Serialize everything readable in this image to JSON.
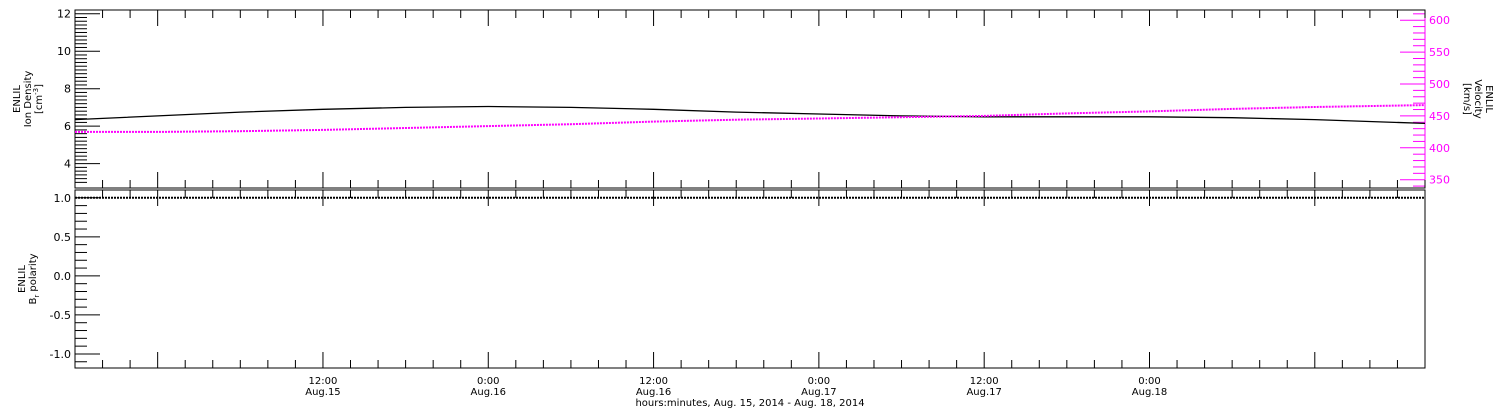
{
  "chart_data": [
    {
      "type": "line",
      "panel": "top",
      "x_range": [
        "2014-08-14T18:00",
        "2014-08-18T20:00"
      ],
      "ylabel_left": [
        "ENLIL",
        "Ion Density",
        "[cm",
        "-3",
        "]"
      ],
      "ylabel_right": [
        "ENLIL",
        "Velocity",
        "[km/s]"
      ],
      "ylim_left": [
        2.7,
        12.2
      ],
      "ylim_right": [
        337,
        616
      ],
      "yticks_left": [
        4,
        6,
        8,
        10,
        12
      ],
      "yticks_right": [
        350,
        400,
        450,
        500,
        550,
        600
      ],
      "series": [
        {
          "axis": "left",
          "color": "#000000",
          "x": [
            "2014-08-14T18:00",
            "2014-08-15T00:00",
            "2014-08-15T06:00",
            "2014-08-15T12:00",
            "2014-08-15T18:00",
            "2014-08-16T00:00",
            "2014-08-16T06:00",
            "2014-08-16T12:00",
            "2014-08-16T18:00",
            "2014-08-17T00:00",
            "2014-08-17T06:00",
            "2014-08-17T12:00",
            "2014-08-17T18:00",
            "2014-08-18T00:00",
            "2014-08-18T06:00",
            "2014-08-18T12:00",
            "2014-08-18T20:00"
          ],
          "values": [
            6.35,
            6.55,
            6.75,
            6.9,
            7.0,
            7.05,
            7.0,
            6.9,
            6.75,
            6.65,
            6.55,
            6.5,
            6.5,
            6.5,
            6.45,
            6.35,
            6.15
          ]
        },
        {
          "axis": "right",
          "color": "#ff00ff",
          "x": [
            "2014-08-14T18:00",
            "2014-08-15T00:00",
            "2014-08-15T06:00",
            "2014-08-15T12:00",
            "2014-08-15T18:00",
            "2014-08-16T00:00",
            "2014-08-16T06:00",
            "2014-08-16T12:00",
            "2014-08-16T18:00",
            "2014-08-17T00:00",
            "2014-08-17T06:00",
            "2014-08-17T12:00",
            "2014-08-17T18:00",
            "2014-08-18T00:00",
            "2014-08-18T06:00",
            "2014-08-18T12:00",
            "2014-08-18T20:00"
          ],
          "values": [
            425,
            425,
            426,
            428,
            431,
            434,
            437,
            441,
            444,
            446,
            448,
            450,
            454,
            457,
            461,
            464,
            467
          ]
        }
      ]
    },
    {
      "type": "line",
      "panel": "bottom",
      "x_range": [
        "2014-08-14T18:00",
        "2014-08-18T20:00"
      ],
      "ylabel_left": [
        "ENLIL",
        "B",
        "r",
        " polarity"
      ],
      "ylim": [
        -1.18,
        1.1
      ],
      "yticks": [
        "1.0",
        "0.5",
        "0.0",
        "-0.5",
        "-1.0"
      ],
      "series": [
        {
          "color": "#000000",
          "x": [
            "2014-08-14T18:00",
            "2014-08-18T20:00"
          ],
          "values": [
            1.0,
            1.0
          ]
        }
      ]
    }
  ],
  "x_axis": {
    "tick_labels": [
      {
        "time": "12:00",
        "date": "Aug.15",
        "at": "2014-08-15T12:00"
      },
      {
        "time": "0:00",
        "date": "Aug.16",
        "at": "2014-08-16T00:00"
      },
      {
        "time": "12:00",
        "date": "Aug.16",
        "at": "2014-08-16T12:00"
      },
      {
        "time": "0:00",
        "date": "Aug.17",
        "at": "2014-08-17T00:00"
      },
      {
        "time": "12:00",
        "date": "Aug.17",
        "at": "2014-08-17T12:00"
      },
      {
        "time": "0:00",
        "date": "Aug.18",
        "at": "2014-08-18T00:00"
      }
    ],
    "title": "hours:minutes, Aug. 15, 2014 - Aug. 18, 2014"
  },
  "colors": {
    "primary": "#000000",
    "velocity": "#ff00ff"
  }
}
